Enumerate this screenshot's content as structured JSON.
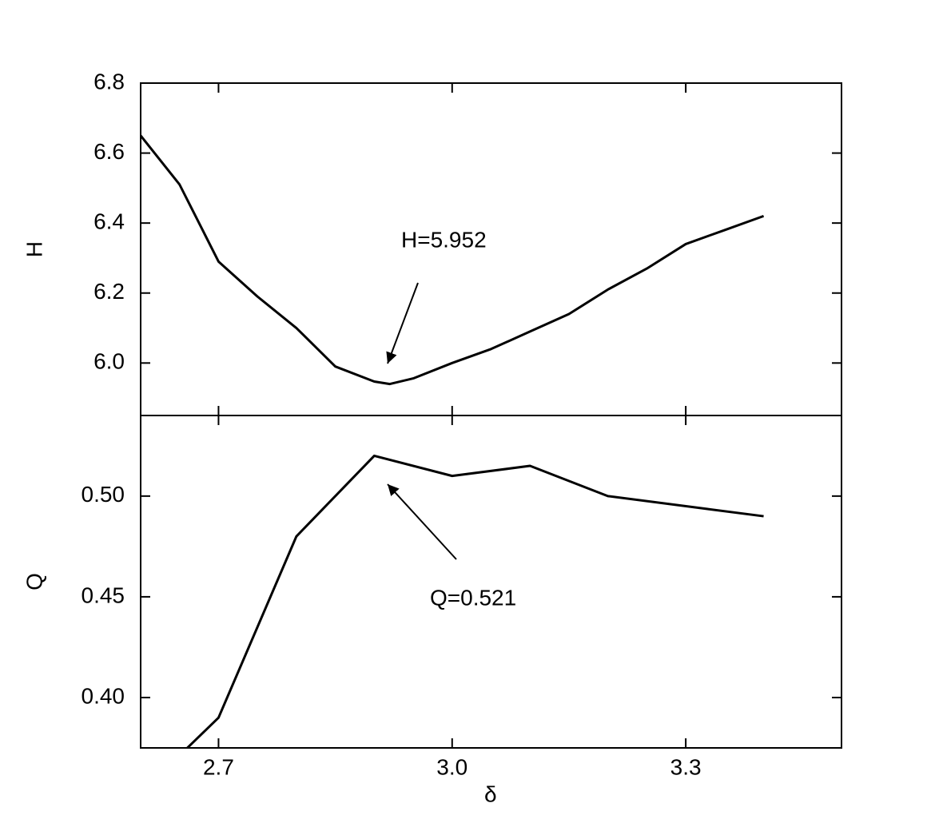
{
  "chart_data": [
    {
      "type": "line",
      "ylabel": "H",
      "annotation": "H=5.952",
      "xlim": [
        2.6,
        3.5
      ],
      "ylim": [
        5.85,
        6.8
      ],
      "yticks": [
        {
          "value": 6,
          "label": "6.0"
        },
        6.2,
        6.4,
        6.6,
        6.8
      ],
      "x": [
        2.6,
        2.65,
        2.7,
        2.75,
        2.8,
        2.85,
        2.9,
        2.92,
        2.95,
        3.0,
        3.05,
        3.1,
        3.15,
        3.2,
        3.25,
        3.3,
        3.35,
        3.4
      ],
      "series": [
        {
          "color": "#000000",
          "values": [
            6.65,
            6.51,
            6.29,
            6.19,
            6.1,
            5.99,
            5.947,
            5.94,
            5.956,
            6.0,
            6.04,
            6.09,
            6.14,
            6.21,
            6.27,
            6.34,
            6.38,
            6.42
          ]
        }
      ]
    },
    {
      "type": "line",
      "ylabel": "Q",
      "xlabel": "δ",
      "annotation": "Q=0.521",
      "xlim": [
        2.6,
        3.5
      ],
      "ylim": [
        0.375,
        0.54
      ],
      "xticks": [
        2.7,
        {
          "value": 3,
          "label": "3.0"
        },
        3.3
      ],
      "yticks": [
        {
          "value": 0.4,
          "label": "0.40"
        },
        0.45,
        {
          "value": 0.5,
          "label": "0.50"
        }
      ],
      "x": [
        2.66,
        2.7,
        2.8,
        2.9,
        3.0,
        3.1,
        3.2,
        3.4
      ],
      "series": [
        {
          "color": "#000000",
          "values": [
            0.375,
            0.39,
            0.48,
            0.52,
            0.51,
            0.515,
            0.5,
            0.49
          ]
        }
      ]
    }
  ]
}
